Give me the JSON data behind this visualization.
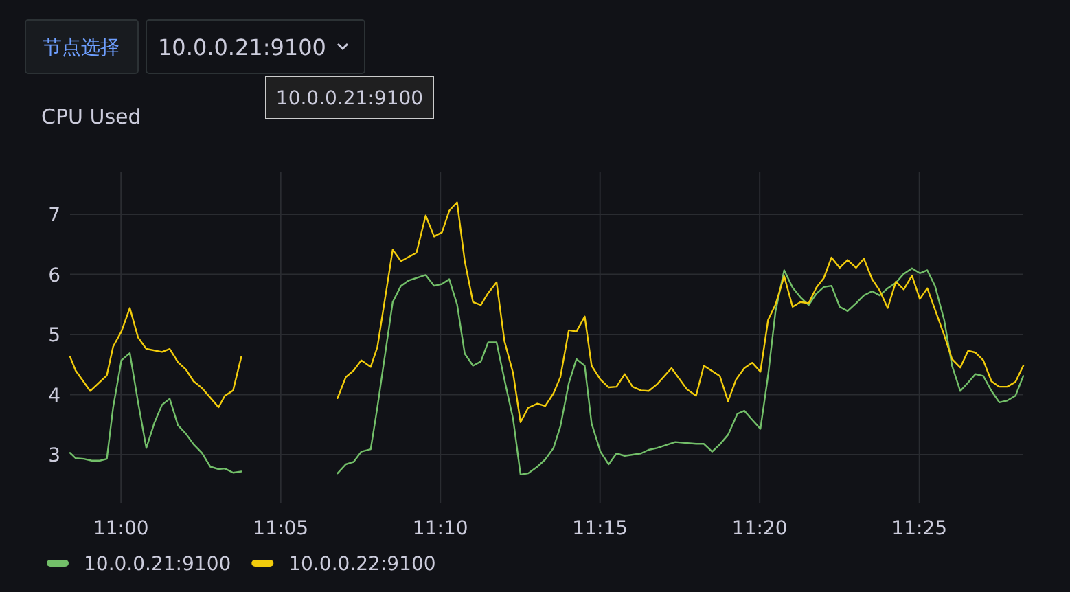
{
  "chart_data": {
    "type": "line",
    "title": "CPU Used",
    "annotations": [
      "节点选择",
      "10.0.0.21:9100",
      "10.0.0.21:9100"
    ],
    "xlim": [
      10.9734,
      11.4709
    ],
    "xticks": [
      {
        "value": 11,
        "label": "11:00"
      },
      {
        "value": 11.08333,
        "label": "11:05"
      },
      {
        "value": 11.16667,
        "label": "11:10"
      },
      {
        "value": 11.25,
        "label": "11:15"
      },
      {
        "value": 11.33333,
        "label": "11:20"
      },
      {
        "value": 11.41667,
        "label": "11:25"
      }
    ],
    "ylim": [
      2.2,
      7.7
    ],
    "yticks": [
      3,
      4,
      5,
      6,
      7
    ],
    "grid": true,
    "legend": "bottom left",
    "series": [
      {
        "name": "10.0.0.21:9100",
        "color": "#73bf69",
        "x": [
          10.9734,
          10.9763,
          10.9806,
          10.9847,
          10.989,
          10.9926,
          10.9959,
          11.0002,
          11.0046,
          11.0089,
          11.0132,
          11.0173,
          11.0214,
          11.0254,
          11.0297,
          11.0338,
          11.0379,
          11.0422,
          11.0466,
          11.0509,
          11.0542,
          11.0585,
          11.0628,
          11.09,
          11.113,
          11.1173,
          11.1214,
          11.1254,
          11.1303,
          11.1338,
          11.1418,
          11.1461,
          11.1502,
          11.159,
          11.1634,
          11.1675,
          11.1713,
          11.1754,
          11.1794,
          11.1837,
          11.1878,
          11.1916,
          11.196,
          11.2001,
          11.2046,
          11.2085,
          11.2125,
          11.2173,
          11.2214,
          11.2257,
          11.2293,
          11.2337,
          11.2377,
          11.242,
          11.2456,
          11.2502,
          11.2545,
          11.2586,
          11.2629,
          11.2713,
          11.2754,
          11.2797,
          11.2893,
          11.3001,
          11.3042,
          11.3085,
          11.3125,
          11.3168,
          11.3217,
          11.3253,
          11.3294,
          11.3337,
          11.3377,
          11.3416,
          11.3461,
          11.3505,
          11.3546,
          11.3589,
          11.3629,
          11.3668,
          11.3708,
          11.3751,
          11.3792,
          11.3836,
          11.3877,
          11.392,
          11.396,
          11.4001,
          11.4044,
          11.4085,
          11.4128,
          11.4169,
          11.4208,
          11.4248,
          11.4296,
          11.4337,
          11.438,
          11.4421,
          11.4459,
          11.45,
          11.4543,
          11.4584,
          11.4625,
          11.4668,
          11.4709
        ],
        "values": [
          3.03,
          2.94,
          2.93,
          2.9,
          2.9,
          2.93,
          3.79,
          4.57,
          4.69,
          3.87,
          3.11,
          3.52,
          3.83,
          3.93,
          3.49,
          3.35,
          3.17,
          3.03,
          2.8,
          2.76,
          2.77,
          2.7,
          2.72,
          null,
          2.69,
          2.84,
          2.88,
          3.05,
          3.09,
          3.79,
          5.54,
          5.81,
          5.9,
          5.99,
          5.81,
          5.84,
          5.92,
          5.5,
          4.68,
          4.48,
          4.55,
          4.87,
          4.87,
          4.25,
          3.6,
          2.67,
          2.69,
          2.8,
          2.92,
          3.11,
          3.47,
          4.19,
          4.59,
          4.48,
          3.52,
          3.05,
          2.84,
          3.02,
          2.98,
          3.02,
          3.08,
          3.11,
          3.21,
          3.18,
          3.18,
          3.05,
          3.17,
          3.33,
          3.68,
          3.73,
          3.58,
          3.43,
          4.32,
          5.39,
          6.07,
          5.78,
          5.62,
          5.49,
          5.68,
          5.79,
          5.81,
          5.46,
          5.39,
          5.52,
          5.65,
          5.72,
          5.65,
          5.77,
          5.86,
          6.01,
          6.1,
          6.02,
          6.07,
          5.81,
          5.24,
          4.48,
          4.06,
          4.2,
          4.34,
          4.31,
          4.06,
          3.87,
          3.9,
          3.98,
          4.31
        ]
      },
      {
        "name": "10.0.0.22:9100",
        "color": "#f2cc0c",
        "x": [
          10.9734,
          10.9763,
          10.9839,
          10.9926,
          10.9959,
          11.0002,
          11.0046,
          11.0089,
          11.0132,
          11.0214,
          11.0254,
          11.0297,
          11.0338,
          11.0379,
          11.0422,
          11.0509,
          11.0542,
          11.0585,
          11.0628,
          11.09,
          11.113,
          11.1173,
          11.1214,
          11.1254,
          11.1303,
          11.1338,
          11.1418,
          11.1461,
          11.1542,
          11.159,
          11.1634,
          11.1675,
          11.1713,
          11.1754,
          11.1794,
          11.1837,
          11.1878,
          11.1916,
          11.196,
          11.2001,
          11.2046,
          11.2085,
          11.2125,
          11.2173,
          11.2214,
          11.2257,
          11.2293,
          11.2337,
          11.2377,
          11.242,
          11.2456,
          11.2502,
          11.2545,
          11.2586,
          11.2629,
          11.267,
          11.2713,
          11.2754,
          11.2797,
          11.2873,
          11.2953,
          11.3001,
          11.3042,
          11.3125,
          11.3168,
          11.321,
          11.3253,
          11.3294,
          11.3337,
          11.3377,
          11.3416,
          11.3461,
          11.3505,
          11.3546,
          11.3589,
          11.3629,
          11.3668,
          11.3708,
          11.3751,
          11.3792,
          11.3836,
          11.3877,
          11.392,
          11.396,
          11.4001,
          11.4044,
          11.4085,
          11.4128,
          11.4169,
          11.4208,
          11.4296,
          11.4337,
          11.438,
          11.4421,
          11.4459,
          11.45,
          11.4543,
          11.4584,
          11.4625,
          11.4668,
          11.4709
        ],
        "values": [
          4.63,
          4.4,
          4.06,
          4.32,
          4.8,
          5.05,
          5.44,
          4.95,
          4.76,
          4.71,
          4.76,
          4.54,
          4.42,
          4.22,
          4.11,
          3.79,
          3.98,
          4.07,
          4.63,
          null,
          3.94,
          4.29,
          4.4,
          4.57,
          4.46,
          4.79,
          6.41,
          6.22,
          6.36,
          6.98,
          6.63,
          6.7,
          7.06,
          7.2,
          6.22,
          5.54,
          5.49,
          5.69,
          5.87,
          4.89,
          4.36,
          3.54,
          3.78,
          3.85,
          3.81,
          4.02,
          4.29,
          5.07,
          5.05,
          5.3,
          4.48,
          4.25,
          4.12,
          4.13,
          4.34,
          4.13,
          4.07,
          4.06,
          4.17,
          4.44,
          4.09,
          3.98,
          4.48,
          4.31,
          3.89,
          4.25,
          4.44,
          4.53,
          4.38,
          5.24,
          5.5,
          5.97,
          5.46,
          5.54,
          5.52,
          5.78,
          5.94,
          6.28,
          6.11,
          6.24,
          6.11,
          6.26,
          5.92,
          5.73,
          5.44,
          5.88,
          5.75,
          5.98,
          5.59,
          5.77,
          4.99,
          4.59,
          4.45,
          4.73,
          4.7,
          4.57,
          4.22,
          4.13,
          4.13,
          4.21,
          4.48
        ]
      }
    ]
  }
}
